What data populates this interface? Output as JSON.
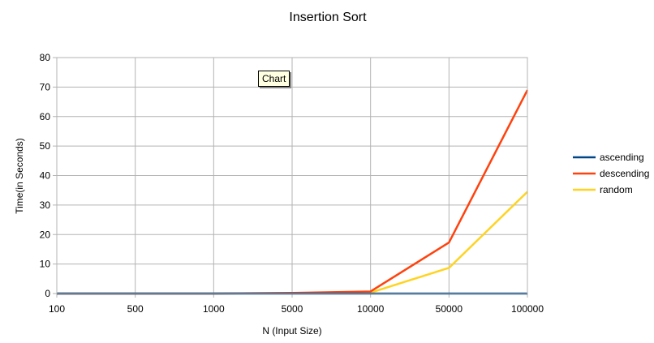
{
  "tooltip": "Chart",
  "chart_data": {
    "type": "line",
    "title": "Insertion Sort",
    "xlabel": "N (Input Size)",
    "ylabel": "Time(in Seconds)",
    "categories": [
      "100",
      "500",
      "1000",
      "5000",
      "10000",
      "50000",
      "100000"
    ],
    "ylim": [
      0,
      80
    ],
    "yticks": [
      0,
      10,
      20,
      30,
      40,
      50,
      60,
      70,
      80
    ],
    "grid": true,
    "legend_position": "right",
    "series": [
      {
        "name": "ascending",
        "color": "#004586",
        "values": [
          0,
          0,
          0,
          0,
          0,
          0,
          0
        ]
      },
      {
        "name": "descending",
        "color": "#ff420e",
        "values": [
          0,
          0,
          0,
          0.2,
          0.7,
          17.3,
          69
        ]
      },
      {
        "name": "random",
        "color": "#ffd320",
        "values": [
          0,
          0,
          0,
          0.1,
          0.3,
          8.7,
          34.5
        ]
      }
    ]
  }
}
